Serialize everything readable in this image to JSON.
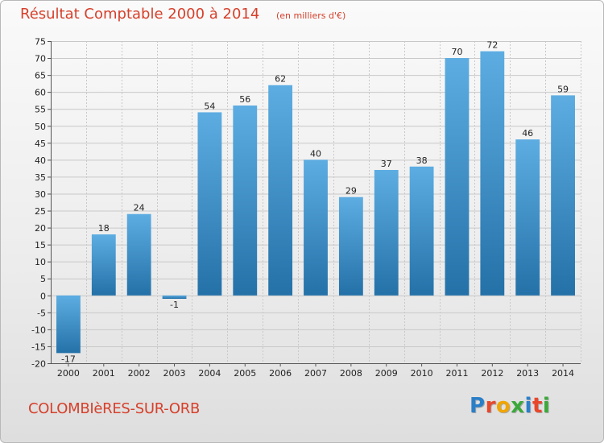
{
  "header": {
    "title": "Résultat Comptable 2000 à 2014",
    "subtitle": "(en milliers d'€)"
  },
  "footer": {
    "town": "COLOMBIèRES-SUR-ORB",
    "logo_letters": [
      "P",
      "r",
      "o",
      "x",
      "i",
      "t",
      "i"
    ],
    "logo_colors": [
      "#2a7fc8",
      "#e8472c",
      "#f0a500",
      "#3aa93a",
      "#2a7fc8",
      "#e8472c",
      "#3aa93a"
    ]
  },
  "colors": {
    "bar_top": "#5dade2",
    "bar_bottom": "#2471a8",
    "grid": "#c8c8c8"
  },
  "chart_data": {
    "type": "bar",
    "title": "Résultat Comptable 2000 à 2014",
    "subtitle": "(en milliers d'€)",
    "xlabel": "",
    "ylabel": "",
    "categories": [
      "2000",
      "2001",
      "2002",
      "2003",
      "2004",
      "2005",
      "2006",
      "2007",
      "2008",
      "2009",
      "2010",
      "2011",
      "2012",
      "2013",
      "2014"
    ],
    "values": [
      -17,
      18,
      24,
      -1,
      54,
      56,
      62,
      40,
      29,
      37,
      38,
      70,
      72,
      46,
      59
    ],
    "value_labels": [
      "-17",
      "18",
      "24",
      "-1",
      "54",
      "56",
      "62",
      "40",
      "29",
      "37",
      "38",
      "70",
      "72",
      "46",
      "59"
    ],
    "ylim": [
      -20,
      75
    ],
    "yticks": [
      -20,
      -15,
      -10,
      -5,
      0,
      5,
      10,
      15,
      20,
      25,
      30,
      35,
      40,
      45,
      50,
      55,
      60,
      65,
      70,
      75
    ],
    "grid": true
  }
}
